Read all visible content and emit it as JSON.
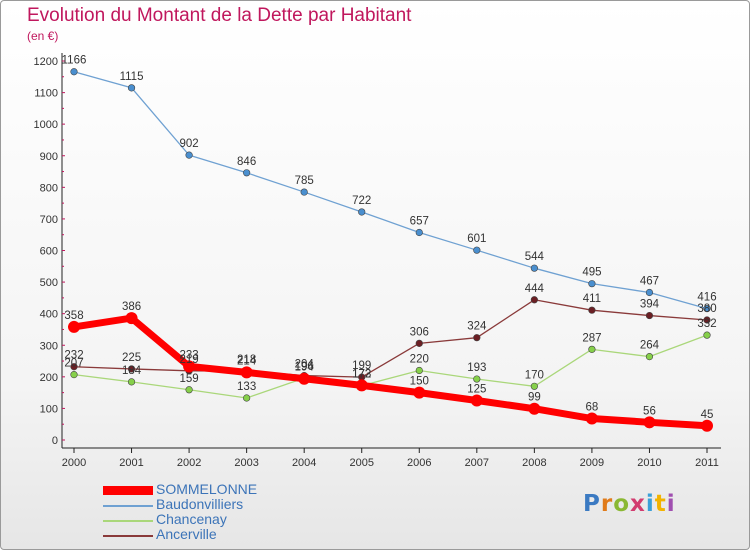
{
  "title": "Evolution du Montant de la Dette par Habitant",
  "subtitle": "(en €)",
  "logo": {
    "text": "Proxiti",
    "letter_colors": [
      "#3b7ac2",
      "#e07b1a",
      "#8ab833",
      "#d23c6f",
      "#3aa0d8",
      "#f2b300",
      "#a04fb0"
    ]
  },
  "chart_data": {
    "type": "line",
    "x": [
      2000,
      2001,
      2002,
      2003,
      2004,
      2005,
      2006,
      2007,
      2008,
      2009,
      2010,
      2011
    ],
    "ylim": [
      0,
      1200
    ],
    "yticks": [
      0,
      100,
      200,
      300,
      400,
      500,
      600,
      700,
      800,
      900,
      1000,
      1100,
      1200
    ],
    "grid": false,
    "series": [
      {
        "name": "Baudonvilliers",
        "color": "#6fa1d2",
        "point_color": "#4a8fcf",
        "width": 1.3,
        "marker": 3.3,
        "values": [
          1166,
          1115,
          902,
          846,
          785,
          722,
          657,
          601,
          544,
          495,
          467,
          416
        ]
      },
      {
        "name": "Chancenay",
        "color": "#aad77a",
        "point_color": "#86d04a",
        "width": 1.3,
        "marker": 3.3,
        "values": [
          207,
          184,
          159,
          133,
          196,
          172,
          220,
          193,
          170,
          287,
          264,
          332
        ]
      },
      {
        "name": "Ancerville",
        "color": "#8a3a3a",
        "point_color": "#6b1f24",
        "width": 1.3,
        "marker": 3.3,
        "values": [
          232,
          225,
          219,
          218,
          204,
          199,
          306,
          324,
          444,
          411,
          394,
          380
        ]
      },
      {
        "name": "SOMMELONNE",
        "color": "#ff0000",
        "point_color": "#ff0000",
        "width": 7,
        "marker": 6,
        "values": [
          358,
          386,
          233,
          214,
          194,
          173,
          150,
          125,
          99,
          68,
          56,
          45
        ]
      }
    ],
    "legend": {
      "placement": "bottom-left",
      "order": [
        "SOMMELONNE",
        "Baudonvilliers",
        "Chancenay",
        "Ancerville"
      ]
    }
  }
}
